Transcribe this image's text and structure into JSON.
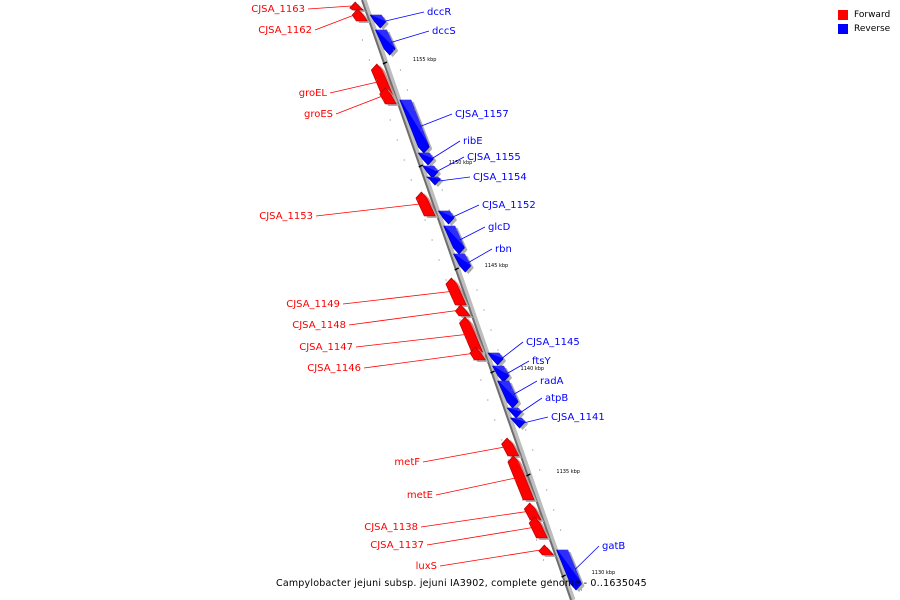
{
  "legend": {
    "forward_label": "Forward",
    "reverse_label": "Reverse",
    "forward_color": "#ff0000",
    "reverse_color": "#0000ff"
  },
  "caption": "Campylobacter jejuni subsp. jejuni IA3902, complete genome - 0..1635045",
  "genes": [
    {
      "name": "CJSA_1163",
      "strand": "forward"
    },
    {
      "name": "CJSA_1162",
      "strand": "forward"
    },
    {
      "name": "dccR",
      "strand": "reverse"
    },
    {
      "name": "dccS",
      "strand": "reverse"
    },
    {
      "name": "groEL",
      "strand": "forward"
    },
    {
      "name": "groES",
      "strand": "forward"
    },
    {
      "name": "CJSA_1157",
      "strand": "reverse"
    },
    {
      "name": "ribE",
      "strand": "reverse"
    },
    {
      "name": "CJSA_1155",
      "strand": "reverse"
    },
    {
      "name": "CJSA_1154",
      "strand": "reverse"
    },
    {
      "name": "CJSA_1153",
      "strand": "forward"
    },
    {
      "name": "CJSA_1152",
      "strand": "reverse"
    },
    {
      "name": "glcD",
      "strand": "reverse"
    },
    {
      "name": "rbn",
      "strand": "reverse"
    },
    {
      "name": "CJSA_1149",
      "strand": "forward"
    },
    {
      "name": "CJSA_1148",
      "strand": "forward"
    },
    {
      "name": "CJSA_1147",
      "strand": "forward"
    },
    {
      "name": "CJSA_1146",
      "strand": "forward"
    },
    {
      "name": "CJSA_1145",
      "strand": "reverse"
    },
    {
      "name": "ftsY",
      "strand": "reverse"
    },
    {
      "name": "radA",
      "strand": "reverse"
    },
    {
      "name": "atpB",
      "strand": "reverse"
    },
    {
      "name": "CJSA_1141",
      "strand": "reverse"
    },
    {
      "name": "metF",
      "strand": "forward"
    },
    {
      "name": "metE",
      "strand": "forward"
    },
    {
      "name": "CJSA_1138",
      "strand": "forward"
    },
    {
      "name": "CJSA_1137",
      "strand": "forward"
    },
    {
      "name": "luxS",
      "strand": "forward"
    },
    {
      "name": "gatB",
      "strand": "reverse"
    }
  ],
  "scale_ticks": [
    "1155 kbp",
    "1150 kbp",
    "1145 kbp",
    "1140 kbp",
    "1135 kbp",
    "1130 kbp"
  ]
}
